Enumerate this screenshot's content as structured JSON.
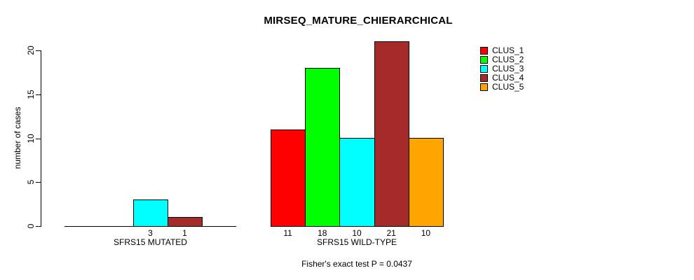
{
  "page": {
    "background_color": "#FFFFFF",
    "text_color": "#000000"
  },
  "chart_data": {
    "type": "bar",
    "title": "MIRSEQ_MATURE_CHIERARCHICAL",
    "xlabel": "",
    "ylabel": "number of cases",
    "ylim": [
      0,
      21
    ],
    "yticks": [
      0,
      5,
      10,
      15,
      20
    ],
    "grid": false,
    "legend_position": "right",
    "series": [
      {
        "name": "CLUS_1",
        "color": "#FF0000"
      },
      {
        "name": "CLUS_2",
        "color": "#00FF00"
      },
      {
        "name": "CLUS_3",
        "color": "#00FFFF"
      },
      {
        "name": "CLUS_4",
        "color": "#A52A2A"
      },
      {
        "name": "CLUS_5",
        "color": "#FFA500"
      }
    ],
    "groups": [
      {
        "label": "SFRS15 MUTATED",
        "values": [
          0,
          0,
          3,
          1,
          0
        ],
        "bar_labels": [
          "",
          "",
          "3",
          "1",
          ""
        ]
      },
      {
        "label": "SFRS15 WILD-TYPE",
        "values": [
          11,
          18,
          10,
          21,
          10
        ],
        "bar_labels": [
          "11",
          "18",
          "10",
          "21",
          "10"
        ]
      }
    ],
    "annotation": "Fisher's exact test P = 0.0437"
  }
}
